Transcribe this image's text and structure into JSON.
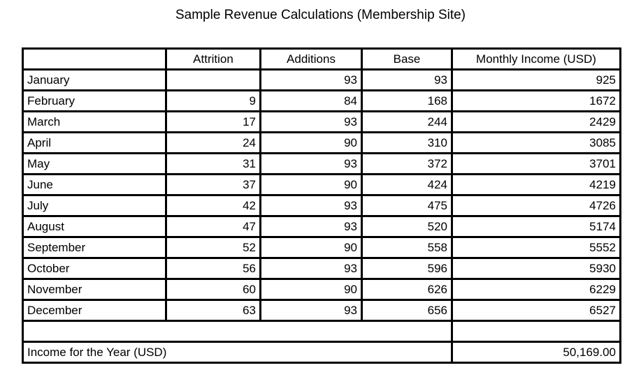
{
  "title": "Sample Revenue Calculations (Membership Site)",
  "chart_data": {
    "type": "table",
    "title": "Sample Revenue Calculations (Membership Site)",
    "columns": [
      "",
      "Attrition",
      "Additions",
      "Base",
      "Monthly Income (USD)"
    ],
    "rows": [
      {
        "month": "January",
        "attrition": "",
        "additions": 93,
        "base": 93,
        "monthly_income": 925
      },
      {
        "month": "February",
        "attrition": 9,
        "additions": 84,
        "base": 168,
        "monthly_income": 1672
      },
      {
        "month": "March",
        "attrition": 17,
        "additions": 93,
        "base": 244,
        "monthly_income": 2429
      },
      {
        "month": "April",
        "attrition": 24,
        "additions": 90,
        "base": 310,
        "monthly_income": 3085
      },
      {
        "month": "May",
        "attrition": 31,
        "additions": 93,
        "base": 372,
        "monthly_income": 3701
      },
      {
        "month": "June",
        "attrition": 37,
        "additions": 90,
        "base": 424,
        "monthly_income": 4219
      },
      {
        "month": "July",
        "attrition": 42,
        "additions": 93,
        "base": 475,
        "monthly_income": 4726
      },
      {
        "month": "August",
        "attrition": 47,
        "additions": 93,
        "base": 520,
        "monthly_income": 5174
      },
      {
        "month": "September",
        "attrition": 52,
        "additions": 90,
        "base": 558,
        "monthly_income": 5552
      },
      {
        "month": "October",
        "attrition": 56,
        "additions": 93,
        "base": 596,
        "monthly_income": 5930
      },
      {
        "month": "November",
        "attrition": 60,
        "additions": 90,
        "base": 626,
        "monthly_income": 6229
      },
      {
        "month": "December",
        "attrition": 63,
        "additions": 93,
        "base": 656,
        "monthly_income": 6527
      }
    ],
    "summary_row": {
      "label": "Income for the Year (USD)",
      "value": "50,169.00"
    }
  }
}
